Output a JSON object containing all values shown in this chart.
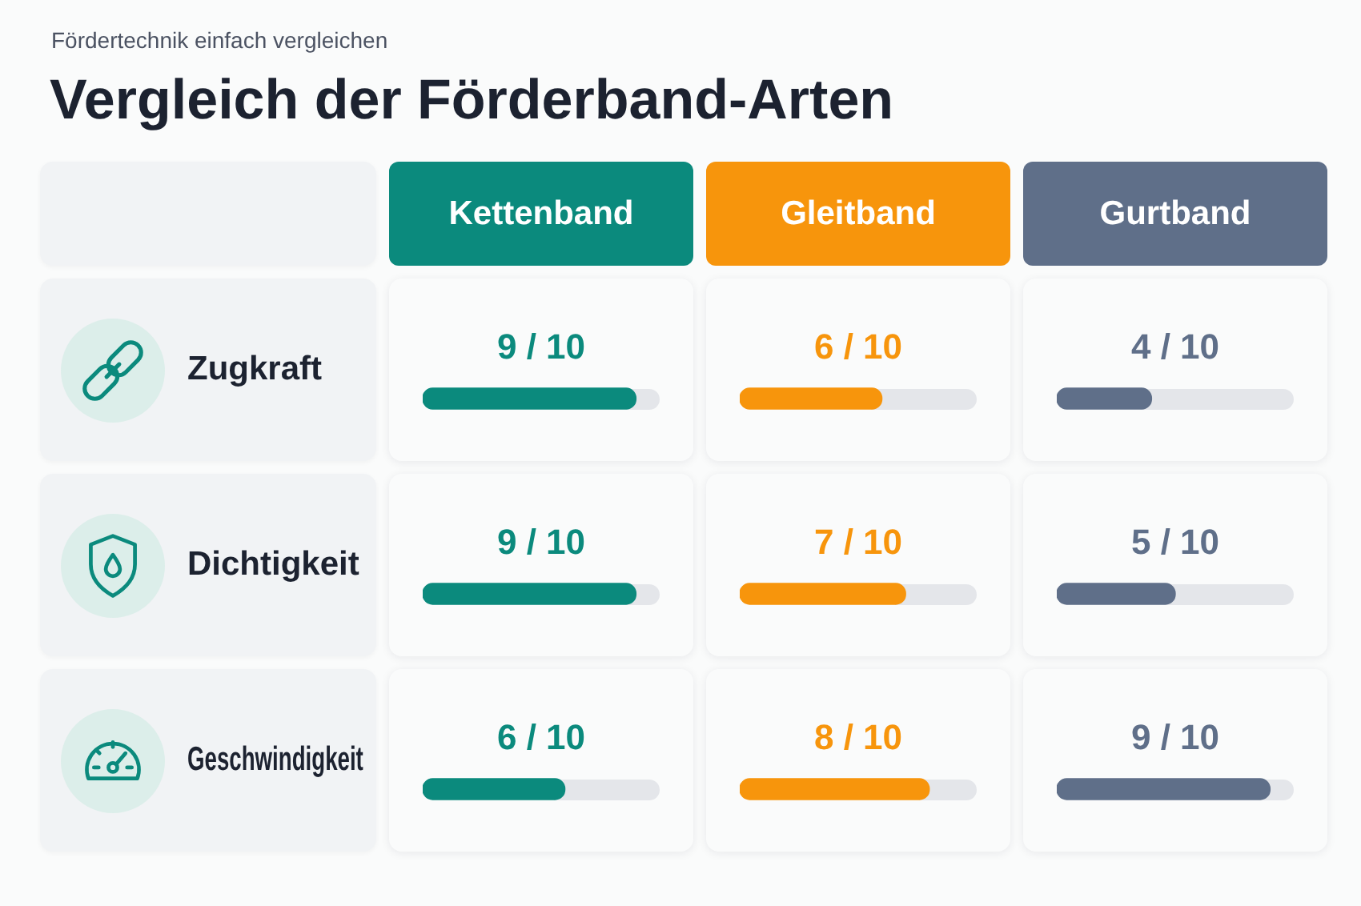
{
  "chart_data": [
    {
      "type": "bar",
      "orientation": "horizontal",
      "title": "Vergleich der Förderband-Arten",
      "subtitle": "Fördertechnik einfach vergleichen",
      "categories": [
        "Zugkraft",
        "Dichtigkeit",
        "Geschwindigkeit"
      ],
      "series": [
        {
          "name": "Kettenband",
          "color": "#0b8a7d",
          "values": [
            0.9,
            0.9,
            0.6
          ],
          "value_labels": [
            "9 / 10",
            "9 / 10",
            "6 / 10"
          ]
        }
      ],
      "xlim": [
        0,
        1
      ],
      "tick_labels": "y"
    },
    {
      "type": "bar",
      "orientation": "horizontal",
      "categories": [
        null,
        null,
        null
      ],
      "series": [
        {
          "name": "Gleitband",
          "color": "#f7950c",
          "values": [
            0.6,
            0.7,
            0.8
          ],
          "value_labels": [
            "6 / 10",
            "7 / 10",
            "8 / 10"
          ]
        }
      ],
      "xlim": [
        0,
        1
      ],
      "tick_labels": false
    },
    {
      "type": "bar",
      "orientation": "horizontal",
      "categories": [
        null,
        null,
        null
      ],
      "series": [
        {
          "name": "Gurtband",
          "color": "#5f6f89",
          "values": [
            0.4,
            0.5,
            0.9
          ],
          "value_labels": [
            "4 / 10",
            "5 / 10",
            "9 / 10"
          ]
        }
      ],
      "xlim": [
        0,
        1
      ],
      "tick_labels": false
    }
  ]
}
